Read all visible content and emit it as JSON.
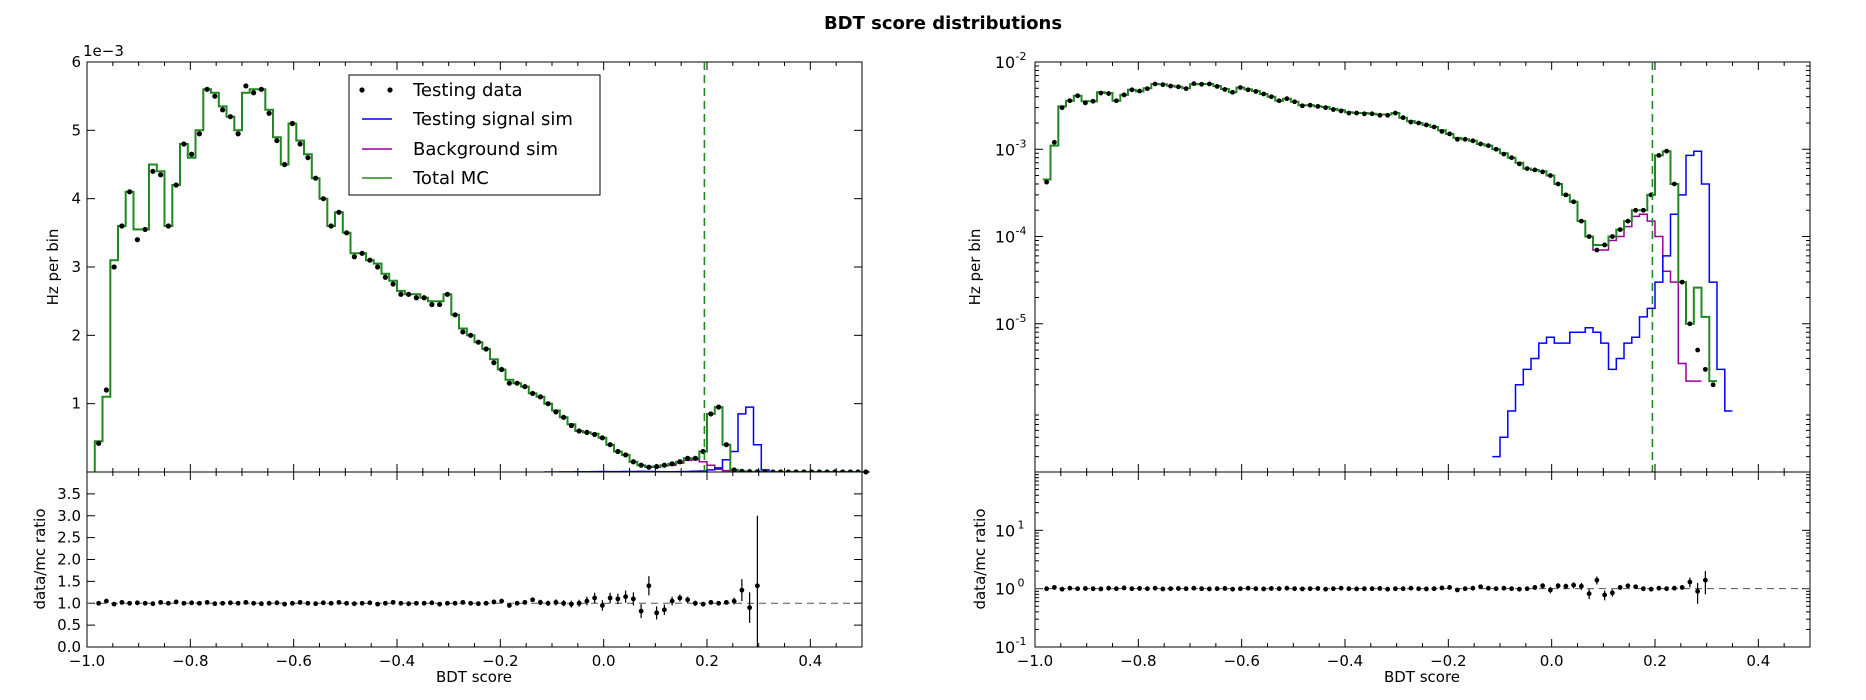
{
  "figure": {
    "title": "BDT score distributions"
  },
  "legend": {
    "entries": [
      {
        "label": "Testing data",
        "kind": "dots",
        "color": "#000000"
      },
      {
        "label": "Testing signal sim",
        "kind": "line",
        "color": "#0000ff"
      },
      {
        "label": "Background sim",
        "kind": "line",
        "color": "#990099"
      },
      {
        "label": "Total MC",
        "kind": "line",
        "color": "#228822"
      }
    ]
  },
  "colors": {
    "data": "#000000",
    "signal": "#0000ff",
    "background": "#990099",
    "total": "#228822",
    "cut": "#228822",
    "ratio_ref": "#555555"
  },
  "chart_data": [
    {
      "id": "left-main",
      "type": "line",
      "ylabel": "Hz per bin",
      "offset_text": "1e−3",
      "xlim": [
        -1.0,
        0.5
      ],
      "ylim": [
        0,
        6
      ],
      "ytick_labels": [
        "1",
        "2",
        "3",
        "4",
        "5",
        "6"
      ],
      "cut_value": 0.195,
      "x_bins_start": -0.985,
      "bin_width": 0.015,
      "series": [
        {
          "name": "Total MC",
          "key": "total",
          "values": [
            0.45,
            1.1,
            3.1,
            3.6,
            4.1,
            3.55,
            3.55,
            4.5,
            4.4,
            3.6,
            4.2,
            4.8,
            4.6,
            5.0,
            5.6,
            5.55,
            5.35,
            5.2,
            5.0,
            5.55,
            5.6,
            5.6,
            5.3,
            4.9,
            4.5,
            5.1,
            4.85,
            4.65,
            4.3,
            4.0,
            3.6,
            3.8,
            3.5,
            3.2,
            3.2,
            3.1,
            3.05,
            2.9,
            2.8,
            2.65,
            2.6,
            2.6,
            2.55,
            2.5,
            2.5,
            2.6,
            2.3,
            2.1,
            2.0,
            1.9,
            1.8,
            1.65,
            1.5,
            1.35,
            1.3,
            1.25,
            1.15,
            1.1,
            1.0,
            0.9,
            0.8,
            0.7,
            0.6,
            0.58,
            0.56,
            0.5,
            0.4,
            0.3,
            0.25,
            0.15,
            0.1,
            0.08,
            0.08,
            0.1,
            0.12,
            0.15,
            0.2,
            0.2,
            0.3,
            0.85,
            0.95,
            0.4,
            0.03,
            0.01,
            0.005,
            0.003,
            0.002,
            0.001,
            0.001,
            0.001,
            0.001,
            0.001,
            0.001,
            0.001,
            0.001,
            0.001,
            0.001,
            0.001,
            0.001,
            0.001
          ]
        },
        {
          "name": "Testing signal sim",
          "key": "signal",
          "values": [
            0,
            0,
            0,
            0,
            0,
            0,
            0,
            0,
            0,
            0,
            0,
            0,
            0,
            0,
            0,
            0,
            0,
            0,
            0,
            0,
            0,
            0,
            0,
            0,
            0,
            0,
            0,
            0,
            0,
            0,
            0,
            0,
            0,
            0,
            0,
            0,
            0,
            0,
            0,
            0,
            0,
            0,
            0,
            0,
            0,
            0,
            0,
            0,
            0,
            0,
            0,
            0,
            0,
            0,
            0,
            0,
            0,
            0,
            0.0003,
            0.0005,
            0.001,
            0.002,
            0.003,
            0.004,
            0.006,
            0.007,
            0.006,
            0.006,
            0.008,
            0.008,
            0.009,
            0.008,
            0.006,
            0.003,
            0.004,
            0.006,
            0.007,
            0.012,
            0.015,
            0.03,
            0.06,
            0.18,
            0.3,
            0.85,
            0.95,
            0.4,
            0.03,
            0.003,
            0.001,
            0,
            0,
            0,
            0,
            0,
            0,
            0,
            0,
            0,
            0,
            0
          ]
        },
        {
          "name": "Background sim",
          "key": "background",
          "values": [
            0.45,
            1.1,
            3.1,
            3.6,
            4.1,
            3.55,
            3.55,
            4.5,
            4.4,
            3.6,
            4.2,
            4.8,
            4.6,
            5.0,
            5.6,
            5.55,
            5.35,
            5.2,
            5.0,
            5.55,
            5.6,
            5.6,
            5.3,
            4.9,
            4.5,
            5.1,
            4.85,
            4.65,
            4.3,
            4.0,
            3.6,
            3.8,
            3.5,
            3.2,
            3.2,
            3.1,
            3.05,
            2.9,
            2.8,
            2.65,
            2.6,
            2.6,
            2.55,
            2.5,
            2.5,
            2.6,
            2.3,
            2.1,
            2.0,
            1.9,
            1.8,
            1.65,
            1.5,
            1.35,
            1.3,
            1.25,
            1.15,
            1.1,
            1.0,
            0.9,
            0.8,
            0.7,
            0.6,
            0.58,
            0.56,
            0.5,
            0.4,
            0.3,
            0.25,
            0.15,
            0.1,
            0.07,
            0.07,
            0.09,
            0.1,
            0.13,
            0.17,
            0.18,
            0.15,
            0.1,
            0.04,
            0.02,
            0.02,
            0,
            0,
            0,
            0,
            0,
            0,
            0,
            0,
            0,
            0,
            0,
            0,
            0,
            0,
            0,
            0,
            0
          ]
        },
        {
          "name": "Testing data",
          "key": "data",
          "values": [
            0.42,
            1.2,
            3.0,
            3.6,
            4.1,
            3.4,
            3.55,
            4.4,
            4.35,
            3.6,
            4.2,
            4.8,
            4.65,
            4.95,
            5.6,
            5.5,
            5.3,
            5.2,
            4.95,
            5.65,
            5.55,
            5.6,
            5.25,
            4.85,
            4.5,
            5.1,
            4.8,
            4.6,
            4.3,
            4.0,
            3.6,
            3.8,
            3.5,
            3.15,
            3.2,
            3.1,
            3.0,
            2.85,
            2.75,
            2.6,
            2.6,
            2.55,
            2.55,
            2.45,
            2.45,
            2.6,
            2.3,
            2.05,
            2.0,
            1.9,
            1.8,
            1.6,
            1.5,
            1.3,
            1.3,
            1.25,
            1.15,
            1.1,
            1.0,
            0.88,
            0.8,
            0.68,
            0.6,
            0.58,
            0.55,
            0.5,
            0.4,
            0.3,
            0.25,
            0.15,
            0.1,
            0.07,
            0.08,
            0.1,
            0.12,
            0.15,
            0.2,
            0.2,
            0.3,
            0.85,
            0.95,
            0.4,
            0.03,
            0.01,
            0.005,
            0.003,
            0.002,
            0.001,
            0.001,
            0.001,
            0.001,
            0.001,
            0.001,
            0.001,
            0.001,
            0.001,
            0.001,
            0.001,
            0.001,
            0.001
          ]
        }
      ]
    },
    {
      "id": "left-ratio",
      "type": "scatter",
      "xlabel": "BDT score",
      "ylabel": "data/mc ratio",
      "xlim": [
        -1.0,
        0.5
      ],
      "ylim": [
        0,
        4
      ],
      "ytick_labels": [
        "0.0",
        "0.5",
        "1.0",
        "1.5",
        "2.0",
        "2.5",
        "3.0",
        "3.5"
      ],
      "xtick_labels": [
        "−1.0",
        "−0.8",
        "−0.6",
        "−0.4",
        "−0.2",
        "0.0",
        "0.2",
        "0.4"
      ],
      "reference": 1.0,
      "x_bins_start": -0.985,
      "bin_width": 0.015,
      "values": [
        1.0,
        1.05,
        0.98,
        1.02,
        1.0,
        1.01,
        1.0,
        0.99,
        1.02,
        1.0,
        1.03,
        1.0,
        1.01,
        1.0,
        1.02,
        0.99,
        1.0,
        1.01,
        1.0,
        1.02,
        1.0,
        0.99,
        1.0,
        1.01,
        0.98,
        1.0,
        1.02,
        1.0,
        0.99,
        1.01,
        1.0,
        1.02,
        1.0,
        0.99,
        1.0,
        1.01,
        0.98,
        1.0,
        1.02,
        1.0,
        0.99,
        1.0,
        1.0,
        1.01,
        0.98,
        1.0,
        1.0,
        1.02,
        1.0,
        0.99,
        1.0,
        1.03,
        1.05,
        0.95,
        1.0,
        1.02,
        1.08,
        1.02,
        1.0,
        1.02,
        1.0,
        0.98,
        1.0,
        1.05,
        1.12,
        0.95,
        1.12,
        1.1,
        1.15,
        1.1,
        0.82,
        1.4,
        0.78,
        0.85,
        1.05,
        1.12,
        1.08,
        1.0,
        0.98,
        1.02,
        1.0,
        1.02,
        1.05,
        1.3,
        0.9,
        1.4
      ],
      "errors": [
        0.02,
        0.02,
        0.02,
        0.02,
        0.02,
        0.02,
        0.02,
        0.02,
        0.02,
        0.02,
        0.02,
        0.02,
        0.02,
        0.02,
        0.02,
        0.02,
        0.02,
        0.02,
        0.02,
        0.02,
        0.02,
        0.02,
        0.02,
        0.02,
        0.02,
        0.02,
        0.02,
        0.02,
        0.02,
        0.02,
        0.02,
        0.02,
        0.02,
        0.02,
        0.02,
        0.02,
        0.02,
        0.02,
        0.02,
        0.02,
        0.02,
        0.02,
        0.02,
        0.02,
        0.02,
        0.02,
        0.02,
        0.02,
        0.02,
        0.02,
        0.03,
        0.03,
        0.04,
        0.04,
        0.04,
        0.05,
        0.05,
        0.06,
        0.06,
        0.07,
        0.07,
        0.08,
        0.08,
        0.1,
        0.12,
        0.12,
        0.12,
        0.12,
        0.14,
        0.15,
        0.16,
        0.22,
        0.15,
        0.12,
        0.1,
        0.08,
        0.07,
        0.06,
        0.05,
        0.05,
        0.05,
        0.05,
        0.08,
        0.25,
        0.35,
        1.6
      ]
    },
    {
      "id": "right-main",
      "type": "line",
      "ylabel": "Hz per bin",
      "xlim": [
        -1.0,
        0.5
      ],
      "ylog": true,
      "ylim": [
        2e-07,
        0.01
      ],
      "ytick_values": [
        1e-05,
        0.0001,
        0.001,
        0.01
      ],
      "ytick_base": [
        "10",
        "10",
        "10",
        "10"
      ],
      "ytick_exp": [
        "-5",
        "-4",
        "-3",
        "-2"
      ],
      "cut_value": 0.195,
      "x_bins_start": -0.985,
      "bin_width": 0.015
    },
    {
      "id": "right-ratio",
      "type": "scatter",
      "xlabel": "BDT score",
      "ylabel": "data/mc ratio",
      "xlim": [
        -1.0,
        0.5
      ],
      "ylog": true,
      "ylim": [
        0.1,
        100
      ],
      "ytick_values": [
        0.1,
        1,
        10
      ],
      "ytick_base": [
        "10",
        "10",
        "10"
      ],
      "ytick_exp": [
        "-1",
        "0",
        "1"
      ],
      "xtick_labels": [
        "−1.0",
        "−0.8",
        "−0.6",
        "−0.4",
        "−0.2",
        "0.0",
        "0.2",
        "0.4"
      ],
      "reference": 1.0
    }
  ]
}
